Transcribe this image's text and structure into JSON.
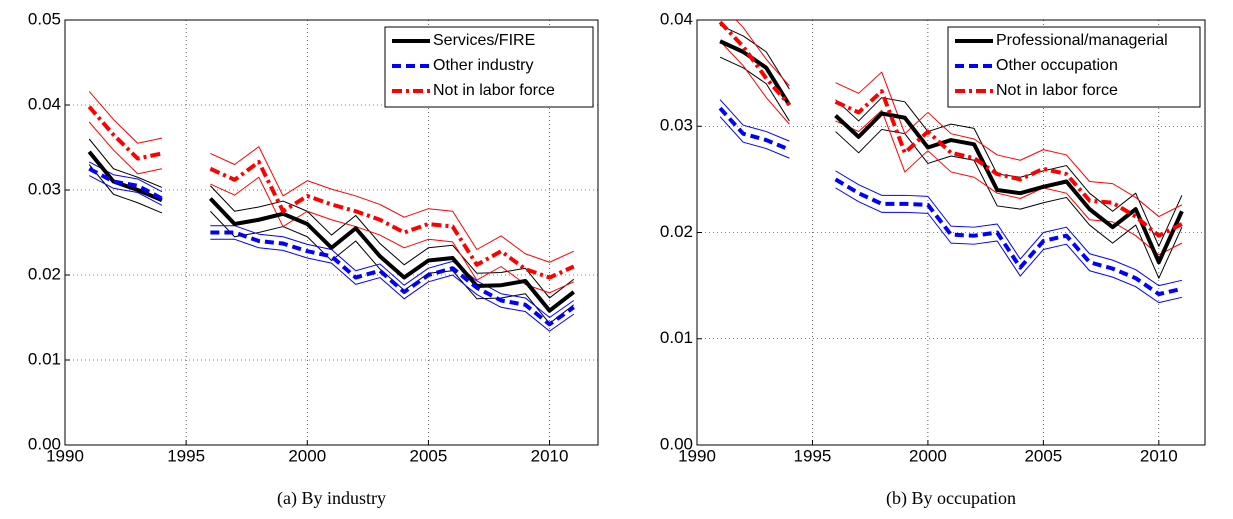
{
  "chart_data": [
    {
      "type": "line",
      "caption": "(a) By industry",
      "x": [
        1991,
        1992,
        1993,
        1994,
        1995,
        1996,
        1997,
        1998,
        1999,
        2000,
        2001,
        2002,
        2003,
        2004,
        2005,
        2006,
        2007,
        2008,
        2009,
        2010,
        2011
      ],
      "xlim": [
        1990,
        2012
      ],
      "xticks": [
        1990,
        1995,
        2000,
        2005,
        2010
      ],
      "ylim": [
        0,
        0.05
      ],
      "yticks": [
        {
          "value": 0,
          "label": "0.00"
        },
        0.01,
        0.02,
        0.03,
        0.04,
        0.05
      ],
      "grid": true,
      "legend": "upper right",
      "series": [
        {
          "name": "Services/FIRE",
          "color": "#000000",
          "style": "solid",
          "values": [
            0.0345,
            0.031,
            0.03,
            0.0288,
            null,
            0.029,
            0.026,
            0.0265,
            0.0272,
            0.026,
            0.0232,
            0.0255,
            0.0222,
            0.0197,
            0.0217,
            0.022,
            0.0187,
            0.0188,
            0.0193,
            0.0158,
            0.018
          ],
          "lower": [
            0.033,
            0.0295,
            0.0285,
            0.0273,
            null,
            0.0275,
            0.0245,
            0.025,
            0.0257,
            0.0245,
            0.0217,
            0.024,
            0.0207,
            0.0182,
            0.0202,
            0.0205,
            0.0172,
            0.0173,
            0.0178,
            0.0143,
            0.0165
          ],
          "upper": [
            0.036,
            0.0325,
            0.0315,
            0.0303,
            null,
            0.0305,
            0.0275,
            0.028,
            0.0287,
            0.0275,
            0.0247,
            0.027,
            0.0237,
            0.0212,
            0.0232,
            0.0235,
            0.0202,
            0.0203,
            0.0208,
            0.0173,
            0.0195
          ]
        },
        {
          "name": "Other industry",
          "color": "#0000ff",
          "style": "dashed",
          "values": [
            0.0325,
            0.031,
            0.0305,
            0.029,
            null,
            0.025,
            0.025,
            0.024,
            0.0237,
            0.0228,
            0.0222,
            0.0197,
            0.0205,
            0.018,
            0.02,
            0.0208,
            0.0185,
            0.017,
            0.0165,
            0.0142,
            0.0162
          ],
          "lower": [
            0.0317,
            0.0302,
            0.0297,
            0.0282,
            null,
            0.0242,
            0.0242,
            0.0232,
            0.0229,
            0.022,
            0.0214,
            0.0189,
            0.0197,
            0.0172,
            0.0192,
            0.02,
            0.0177,
            0.0162,
            0.0157,
            0.0134,
            0.0154
          ],
          "upper": [
            0.0333,
            0.0318,
            0.0313,
            0.0298,
            null,
            0.0258,
            0.0258,
            0.0248,
            0.0245,
            0.0236,
            0.023,
            0.0205,
            0.0213,
            0.0188,
            0.0208,
            0.0216,
            0.0193,
            0.0178,
            0.0173,
            0.015,
            0.017
          ]
        },
        {
          "name": "Not in labor force",
          "color": "#ff0000",
          "style": "dashdot",
          "values": [
            0.0398,
            0.0365,
            0.0337,
            0.0343,
            null,
            0.0325,
            0.0312,
            0.0333,
            0.0275,
            0.0293,
            0.0283,
            0.0275,
            0.0265,
            0.025,
            0.026,
            0.0257,
            0.0212,
            0.0228,
            0.0207,
            0.0197,
            0.021
          ],
          "lower": [
            0.038,
            0.0347,
            0.0319,
            0.0325,
            null,
            0.0307,
            0.0294,
            0.0315,
            0.0257,
            0.0275,
            0.0265,
            0.0257,
            0.0247,
            0.0232,
            0.0242,
            0.0239,
            0.0194,
            0.021,
            0.0189,
            0.0179,
            0.0192
          ],
          "upper": [
            0.0416,
            0.0383,
            0.0355,
            0.0361,
            null,
            0.0343,
            0.033,
            0.0351,
            0.0293,
            0.0311,
            0.0301,
            0.0293,
            0.0283,
            0.0268,
            0.0278,
            0.0275,
            0.023,
            0.0246,
            0.0225,
            0.0215,
            0.0228
          ]
        }
      ]
    },
    {
      "type": "line",
      "caption": "(b) By occupation",
      "x": [
        1991,
        1992,
        1993,
        1994,
        1995,
        1996,
        1997,
        1998,
        1999,
        2000,
        2001,
        2002,
        2003,
        2004,
        2005,
        2006,
        2007,
        2008,
        2009,
        2010,
        2011
      ],
      "xlim": [
        1990,
        2012
      ],
      "xticks": [
        1990,
        1995,
        2000,
        2005,
        2010
      ],
      "ylim": [
        0,
        0.04
      ],
      "yticks": [
        {
          "value": 0,
          "label": "0.00"
        },
        0.01,
        0.02,
        0.03,
        0.04
      ],
      "grid": true,
      "legend": "upper right",
      "series": [
        {
          "name": "Professional/managerial",
          "color": "#000000",
          "style": "solid",
          "values": [
            0.038,
            0.037,
            0.0355,
            0.032,
            null,
            0.031,
            0.029,
            0.0312,
            0.0308,
            0.028,
            0.0287,
            0.0283,
            0.024,
            0.0237,
            0.0243,
            0.0248,
            0.0222,
            0.0205,
            0.0222,
            0.0172,
            0.022
          ],
          "lower": [
            0.0365,
            0.0355,
            0.034,
            0.0305,
            null,
            0.0295,
            0.0275,
            0.0297,
            0.0293,
            0.0265,
            0.0272,
            0.0268,
            0.0225,
            0.0222,
            0.0228,
            0.0233,
            0.0207,
            0.019,
            0.0207,
            0.0157,
            0.0205
          ],
          "upper": [
            0.0395,
            0.0385,
            0.037,
            0.0335,
            null,
            0.0325,
            0.0305,
            0.0327,
            0.0323,
            0.0295,
            0.0302,
            0.0298,
            0.0255,
            0.0252,
            0.0258,
            0.0263,
            0.0237,
            0.022,
            0.0237,
            0.0187,
            0.0235
          ]
        },
        {
          "name": "Other occupation",
          "color": "#0000ff",
          "style": "dashed",
          "values": [
            0.0317,
            0.0293,
            0.0287,
            0.0278,
            null,
            0.025,
            0.0237,
            0.0227,
            0.0227,
            0.0226,
            0.0198,
            0.0197,
            0.02,
            0.0167,
            0.0192,
            0.0197,
            0.0172,
            0.0166,
            0.0157,
            0.0142,
            0.0147
          ],
          "lower": [
            0.0309,
            0.0285,
            0.0279,
            0.027,
            null,
            0.0242,
            0.0229,
            0.0219,
            0.0219,
            0.0218,
            0.019,
            0.0189,
            0.0192,
            0.0159,
            0.0184,
            0.0189,
            0.0164,
            0.0158,
            0.0149,
            0.0134,
            0.0139
          ],
          "upper": [
            0.0325,
            0.0301,
            0.0295,
            0.0286,
            null,
            0.0258,
            0.0245,
            0.0235,
            0.0235,
            0.0234,
            0.0206,
            0.0205,
            0.0208,
            0.0175,
            0.02,
            0.0205,
            0.018,
            0.0174,
            0.0165,
            0.015,
            0.0155
          ]
        },
        {
          "name": "Not in labor force",
          "color": "#ff0000",
          "style": "dashdot",
          "values": [
            0.0398,
            0.0375,
            0.0345,
            0.032,
            null,
            0.0323,
            0.0313,
            0.0333,
            0.0275,
            0.0295,
            0.0275,
            0.027,
            0.0255,
            0.025,
            0.026,
            0.0255,
            0.023,
            0.0228,
            0.0215,
            0.0197,
            0.0208
          ],
          "lower": [
            0.038,
            0.0357,
            0.0327,
            0.0302,
            null,
            0.0305,
            0.0295,
            0.0315,
            0.0257,
            0.0277,
            0.0257,
            0.0252,
            0.0237,
            0.0232,
            0.0242,
            0.0237,
            0.0212,
            0.021,
            0.0197,
            0.0179,
            0.019
          ],
          "upper": [
            0.0416,
            0.0393,
            0.0363,
            0.0338,
            null,
            0.0341,
            0.0331,
            0.0351,
            0.0293,
            0.0313,
            0.0293,
            0.0288,
            0.0273,
            0.0268,
            0.0278,
            0.0273,
            0.0248,
            0.0246,
            0.0233,
            0.0215,
            0.0226
          ]
        }
      ]
    }
  ]
}
